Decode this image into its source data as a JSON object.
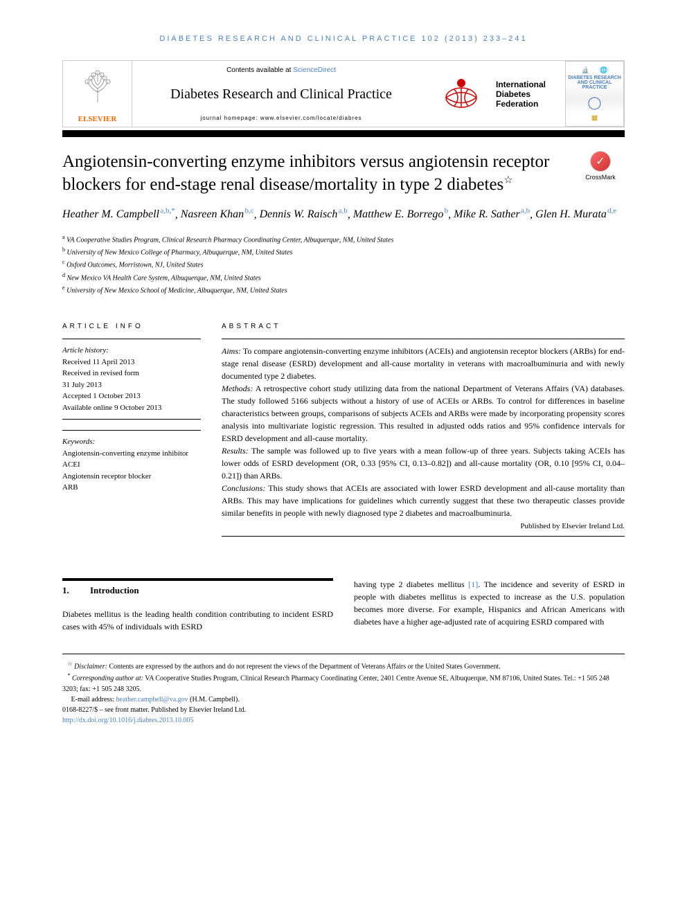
{
  "running_head": "DIABETES RESEARCH AND CLINICAL PRACTICE 102 (2013) 233–241",
  "header": {
    "contents_prefix": "Contents available at ",
    "contents_link": "ScienceDirect",
    "journal_name": "Diabetes Research and Clinical Practice",
    "homepage_label": "journal homepage: www.elsevier.com/locate/diabres",
    "elsevier_label": "ELSEVIER",
    "idf_line1": "International",
    "idf_line2": "Diabetes",
    "idf_line3": "Federation",
    "cover_title": "DIABETES RESEARCH AND CLINICAL PRACTICE",
    "crossmark_label": "CrossMark"
  },
  "title": "Angiotensin-converting enzyme inhibitors versus angiotensin receptor blockers for end-stage renal disease/mortality in type 2 diabetes",
  "authors": [
    {
      "name": "Heather M. Campbell",
      "aff": "a,b,",
      "corr": "*"
    },
    {
      "name": "Nasreen Khan",
      "aff": "b,c"
    },
    {
      "name": "Dennis W. Raisch",
      "aff": "a,b"
    },
    {
      "name": "Matthew E. Borrego",
      "aff": "b"
    },
    {
      "name": "Mike R. Sather",
      "aff": "a,b"
    },
    {
      "name": "Glen H. Murata",
      "aff": "d,e"
    }
  ],
  "affiliations": [
    {
      "label": "a",
      "text": "VA Cooperative Studies Program, Clinical Research Pharmacy Coordinating Center, Albuquerque, NM, United States"
    },
    {
      "label": "b",
      "text": "University of New Mexico College of Pharmacy, Albuquerque, NM, United States"
    },
    {
      "label": "c",
      "text": "Oxford Outcomes, Morristown, NJ, United States"
    },
    {
      "label": "d",
      "text": "New Mexico VA Health Care System, Albuquerque, NM, United States"
    },
    {
      "label": "e",
      "text": "University of New Mexico School of Medicine, Albuquerque, NM, United States"
    }
  ],
  "info_head": "ARTICLE INFO",
  "abstract_head": "ABSTRACT",
  "history": {
    "label": "Article history:",
    "received": "Received 11 April 2013",
    "revised1": "Received in revised form",
    "revised2": "31 July 2013",
    "accepted": "Accepted 1 October 2013",
    "online": "Available online 9 October 2013"
  },
  "keywords": {
    "label": "Keywords:",
    "items": [
      "Angiotensin-converting enzyme inhibitor",
      "ACEI",
      "Angiotensin receptor blocker",
      "ARB"
    ]
  },
  "abstract": {
    "aims_label": "Aims:",
    "aims": " To compare angiotensin-converting enzyme inhibitors (ACEIs) and angiotensin receptor blockers (ARBs) for end-stage renal disease (ESRD) development and all-cause mortality in veterans with macroalbuminuria and with newly documented type 2 diabetes.",
    "methods_label": "Methods:",
    "methods": " A retrospective cohort study utilizing data from the national Department of Veterans Affairs (VA) databases. The study followed 5166 subjects without a history of use of ACEIs or ARBs. To control for differences in baseline characteristics between groups, comparisons of subjects ACEIs and ARBs were made by incorporating propensity scores analysis into multivariate logistic regression. This resulted in adjusted odds ratios and 95% confidence intervals for ESRD development and all-cause mortality.",
    "results_label": "Results:",
    "results": " The sample was followed up to five years with a mean follow-up of three years. Subjects taking ACEIs has lower odds of ESRD development (OR, 0.33 [95% CI, 0.13–0.82]) and all-cause mortality (OR, 0.10 [95% CI, 0.04–0.21]) than ARBs.",
    "conclusions_label": "Conclusions:",
    "conclusions": " This study shows that ACEIs are associated with lower ESRD development and all-cause mortality than ARBs. This may have implications for guidelines which currently suggest that these two therapeutic classes provide similar benefits in people with newly diagnosed type 2 diabetes and macroalbuminuria.",
    "publisher": "Published by Elsevier Ireland Ltd."
  },
  "section1": {
    "num": "1.",
    "title": "Introduction"
  },
  "body_left": "Diabetes mellitus is the leading health condition contributing to incident ESRD cases with 45% of individuals with ESRD",
  "body_right_1": "having type 2 diabetes mellitus ",
  "body_right_ref": "[1]",
  "body_right_2": ". The incidence and severity of ESRD in people with diabetes mellitus is expected to increase as the U.S. population becomes more diverse. For example, Hispanics and African Americans with diabetes have a higher age-adjusted rate of acquiring ESRD compared with",
  "footnotes": {
    "disclaimer_label": "☆",
    "disclaimer_head": "Disclaimer:",
    "disclaimer": " Contents are expressed by the authors and do not represent the views of the Department of Veterans Affairs or the United States Government.",
    "corr_label": "*",
    "corr_head": "Corresponding author at:",
    "corr": " VA Cooperative Studies Program, Clinical Research Pharmacy Coordinating Center, 2401 Centre Avenue SE, Albuquerque, NM 87106, United States. Tel.: +1 505 248 3203; fax: +1 505 248 3205.",
    "email_label": "E-mail address: ",
    "email": "heather.campbell@va.gov",
    "email_suffix": " (H.M. Campbell).",
    "issn": "0168-8227/$ – see front matter. Published by Elsevier Ireland Ltd.",
    "doi": "http://dx.doi.org/10.1016/j.diabres.2013.10.005"
  }
}
